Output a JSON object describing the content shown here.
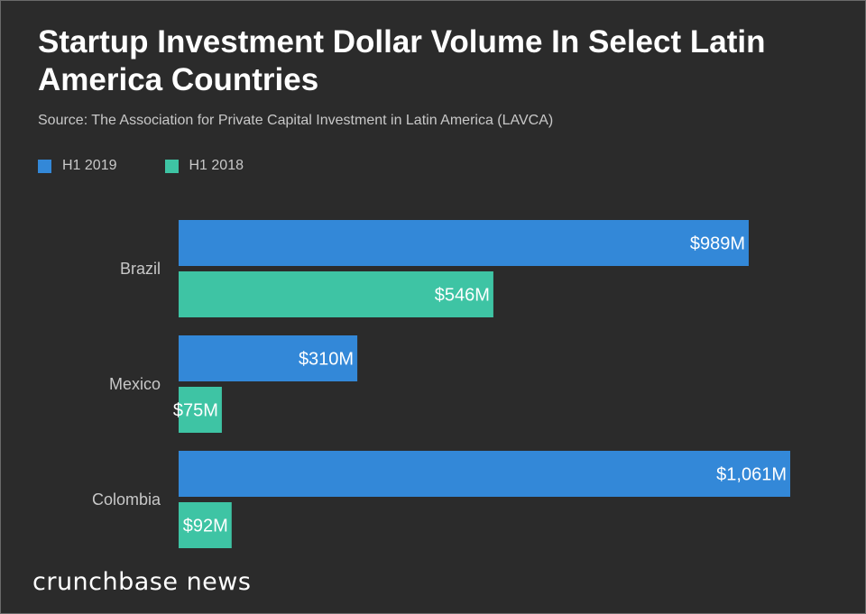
{
  "chart_data": {
    "type": "bar",
    "orientation": "horizontal",
    "title": "Startup Investment Dollar Volume In Select Latin America Countries",
    "subtitle": "Source: The Association for Private Capital Investment in Latin America (LAVCA)",
    "categories": [
      "Brazil",
      "Mexico",
      "Colombia"
    ],
    "series": [
      {
        "name": "H1 2019",
        "color": "#3388d8",
        "values": [
          989,
          310,
          1061
        ],
        "labels": [
          "$989M",
          "$310M",
          "$1,061M"
        ]
      },
      {
        "name": "H1 2018",
        "color": "#3ec4a4",
        "values": [
          546,
          75,
          92
        ],
        "labels": [
          "$546M",
          "$75M",
          "$92M"
        ]
      }
    ],
    "xlim": [
      0,
      1061
    ],
    "grid": false,
    "legend_position": "top-left"
  },
  "brand": {
    "logo_text": "crunchbase news"
  },
  "colors": {
    "background": "#2b2b2b",
    "text": "#ffffff",
    "muted_text": "#c8c8c8"
  }
}
